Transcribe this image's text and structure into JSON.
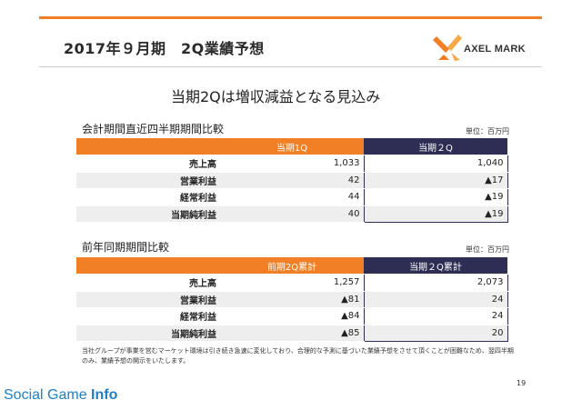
{
  "slide": {
    "title": "2017年９月期　2Q業績予想",
    "subtitle": "当期2Qは増収減益となる見込み",
    "page_number": "19",
    "note": "当社グループが事業を営むマーケット環境は引き続き急速に変化しており、合理的な予測に基づいた業績予想をさせて頂くことが困難なため、翌四半期のみ、業績予想の開示をいたします。"
  },
  "logo": {
    "text": "AXEL MARK",
    "colors": [
      "#f07f26",
      "#f7a94a"
    ]
  },
  "colors": {
    "accent_orange": "#f07f26",
    "navy": "#2e2d54",
    "row_alt": "#eeeeee",
    "watermark_blue": "#1e7fc4"
  },
  "table1": {
    "title": "会計期間直近四半期期間比較",
    "unit": "単位：百万円",
    "col1": "当期1Q",
    "col2": "当期２Q",
    "rows": [
      {
        "label": "売上高",
        "v1": "1,033",
        "v2": "1,040"
      },
      {
        "label": "営業利益",
        "v1": "42",
        "v2": "▲17"
      },
      {
        "label": "経常利益",
        "v1": "44",
        "v2": "▲19"
      },
      {
        "label": "当期純利益",
        "v1": "40",
        "v2": "▲19"
      }
    ]
  },
  "table2": {
    "title": "前年同期期間比較",
    "unit": "単位：百万円",
    "col1": "前期2Q累計",
    "col2": "当期２Q累計",
    "rows": [
      {
        "label": "売上高",
        "v1": "1,257",
        "v2": "2,073"
      },
      {
        "label": "営業利益",
        "v1": "▲81",
        "v2": "24"
      },
      {
        "label": "経常利益",
        "v1": "▲84",
        "v2": "24"
      },
      {
        "label": "当期純利益",
        "v1": "▲85",
        "v2": "20"
      }
    ]
  },
  "watermark": {
    "prefix": "Social Game ",
    "suffix": "Info"
  }
}
